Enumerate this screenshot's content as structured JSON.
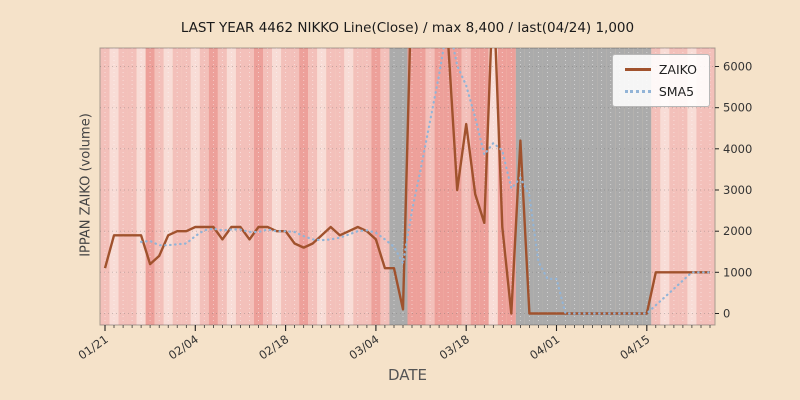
{
  "colors": {
    "figure_bg": "#f5e2c9",
    "zaiko_line": "#a0522d",
    "sma5_line": "#92b4d7",
    "tick_text": "#333333",
    "title_text": "#1a1a1a"
  },
  "chart_data": {
    "type": "line",
    "title": "LAST YEAR 4462 NIKKO Line(Close) / max 8,400 / last(04/24) 1,000",
    "xlabel": "DATE",
    "ylabel": "IPPAN ZAIKO (volume)",
    "y_ticks": [
      0,
      1000,
      2000,
      3000,
      4000,
      5000,
      6000
    ],
    "y_tick_side": "right",
    "ylim": [
      -280,
      6450
    ],
    "grid": true,
    "legend_position": "top-right",
    "max_value": 8400,
    "last": {
      "date": "04/24",
      "value": 1000
    },
    "x_tick_indices": [
      0,
      10,
      20,
      30,
      40,
      50,
      60
    ],
    "x_tick_labels": [
      "01/21",
      "02/04",
      "02/18",
      "03/04",
      "03/18",
      "04/01",
      "04/15"
    ],
    "dates": [
      "01/21",
      "01/22",
      "01/23",
      "01/24",
      "01/27",
      "01/28",
      "01/29",
      "01/30",
      "01/31",
      "02/03",
      "02/04",
      "02/05",
      "02/06",
      "02/07",
      "02/10",
      "02/11",
      "02/12",
      "02/13",
      "02/14",
      "02/17",
      "02/18",
      "02/19",
      "02/20",
      "02/21",
      "02/24",
      "02/25",
      "02/26",
      "02/27",
      "02/28",
      "03/03",
      "03/04",
      "03/05",
      "03/06",
      "03/07",
      "03/10",
      "03/11",
      "03/12",
      "03/13",
      "03/14",
      "03/17",
      "03/18",
      "03/19",
      "03/20",
      "03/21",
      "03/24",
      "03/25",
      "03/26",
      "03/27",
      "03/28",
      "03/31",
      "04/01",
      "04/02",
      "04/03",
      "04/04",
      "04/07",
      "04/08",
      "04/09",
      "04/10",
      "04/11",
      "04/14",
      "04/15",
      "04/16",
      "04/17",
      "04/18",
      "04/21",
      "04/22",
      "04/23",
      "04/24"
    ],
    "series": [
      {
        "name": "ZAIKO",
        "color": "#a0522d",
        "style": "solid",
        "values": [
          1100,
          1900,
          1900,
          1900,
          1900,
          1200,
          1400,
          1900,
          2000,
          2000,
          2100,
          2100,
          2100,
          1800,
          2100,
          2100,
          1800,
          2100,
          2100,
          2000,
          2000,
          1700,
          1600,
          1700,
          1900,
          2100,
          1900,
          2000,
          2100,
          2000,
          1800,
          1100,
          1100,
          100,
          8400,
          7000,
          6800,
          6700,
          6600,
          3000,
          4600,
          2900,
          2200,
          8000,
          2100,
          0,
          4200,
          0,
          0,
          0,
          0,
          0,
          0,
          0,
          0,
          0,
          0,
          0,
          0,
          0,
          0,
          1000,
          1000,
          1000,
          1000,
          1000,
          1000,
          1000
        ]
      },
      {
        "name": "SMA5",
        "color": "#92b4d7",
        "style": "dotted",
        "values": [
          null,
          null,
          null,
          null,
          1740,
          1760,
          1660,
          1660,
          1680,
          1700,
          1880,
          2020,
          2060,
          2020,
          2040,
          2040,
          1980,
          1980,
          2040,
          2000,
          2000,
          1980,
          1880,
          1800,
          1780,
          1800,
          1840,
          1920,
          2000,
          2020,
          1960,
          1800,
          1620,
          1220,
          2500,
          3540,
          4680,
          5800,
          7100,
          6020,
          5540,
          4760,
          3860,
          4140,
          3960,
          3040,
          3300,
          2860,
          1260,
          840,
          840,
          0,
          0,
          0,
          0,
          0,
          0,
          0,
          0,
          0,
          0,
          200,
          400,
          600,
          800,
          1000,
          1000,
          1000
        ]
      }
    ],
    "background_bands": {
      "palette": {
        "p1": "#f8dcd6",
        "p2": "#f3c0ba",
        "p3": "#eda09a",
        "g": "#ababab"
      },
      "per_day": [
        "p2",
        "p1",
        "p2",
        "p2",
        "p1",
        "p3",
        "p2",
        "p1",
        "p2",
        "p2",
        "p1",
        "p2",
        "p3",
        "p2",
        "p1",
        "p2",
        "p2",
        "p3",
        "p2",
        "p1",
        "p2",
        "p2",
        "p3",
        "p2",
        "p1",
        "p2",
        "p2",
        "p1",
        "p2",
        "p2",
        "p3",
        "p2",
        "g",
        "g",
        "p3",
        "p3",
        "p2",
        "p3",
        "p3",
        "p3",
        "p2",
        "p3",
        "p3",
        "p1",
        "p3",
        "p3",
        "g",
        "g",
        "g",
        "g",
        "g",
        "g",
        "g",
        "g",
        "g",
        "g",
        "g",
        "g",
        "g",
        "g",
        "g",
        "p2",
        "p1",
        "p2",
        "p2",
        "p1",
        "p2",
        "p2"
      ]
    }
  }
}
